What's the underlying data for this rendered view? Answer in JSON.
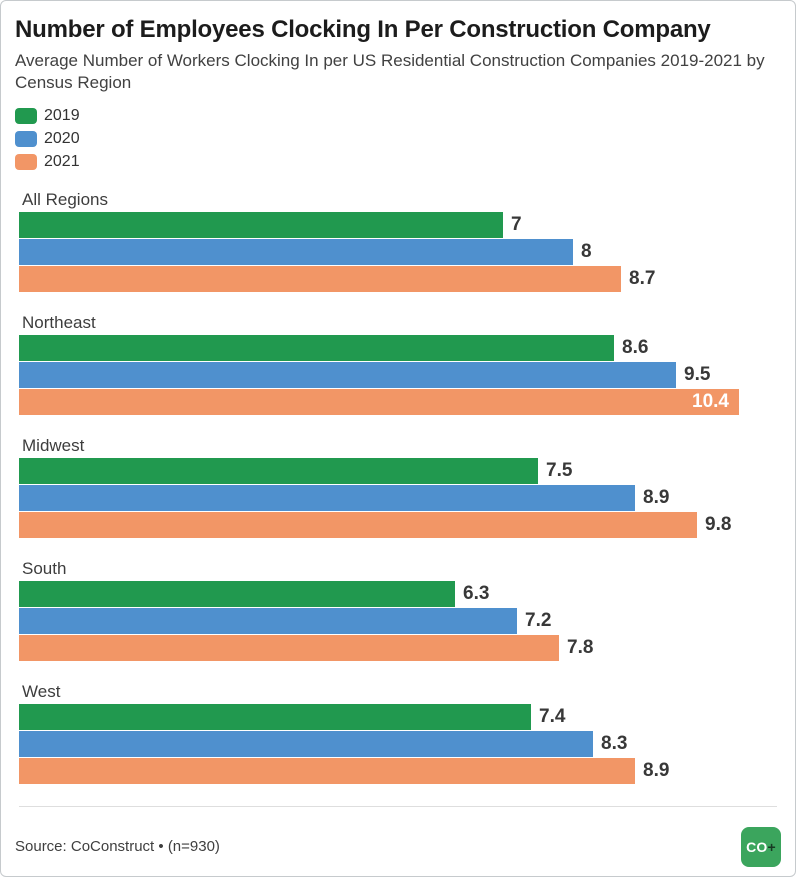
{
  "header": {
    "title": "Number of Employees Clocking In Per Construction Company",
    "subtitle": "Average Number of Workers Clocking In per US Residential Construction Companies 2019-2021 by Census Region"
  },
  "chart_data": {
    "type": "bar",
    "orientation": "horizontal",
    "title": "Number of Employees Clocking In Per Construction Company",
    "subtitle": "Average Number of Workers Clocking In per US Residential Construction Companies 2019-2021 by Census Region",
    "categories": [
      "All Regions",
      "Northeast",
      "Midwest",
      "South",
      "West"
    ],
    "series": [
      {
        "name": "2019",
        "color": "#21994f",
        "values": [
          7,
          8.6,
          7.5,
          6.3,
          7.4
        ]
      },
      {
        "name": "2020",
        "color": "#4f90ce",
        "values": [
          8,
          9.5,
          8.9,
          7.2,
          8.3
        ]
      },
      {
        "name": "2021",
        "color": "#f29666",
        "values": [
          8.7,
          10.4,
          9.8,
          7.8,
          8.9
        ]
      }
    ],
    "value_labels": {
      "All Regions": [
        "7",
        "8",
        "8.7"
      ],
      "Northeast": [
        "8.6",
        "9.5",
        "10.4"
      ],
      "Midwest": [
        "7.5",
        "8.9",
        "9.8"
      ],
      "South": [
        "6.3",
        "7.2",
        "7.8"
      ],
      "West": [
        "7.4",
        "8.3",
        "8.9"
      ]
    },
    "xlim": [
      0,
      10.75
    ],
    "grid": false,
    "legend_position": "top-left",
    "value_label_color_outside": "#383838",
    "value_label_color_inside": "#ffffff"
  },
  "footer": {
    "source": "Source: CoConstruct • (n=930)",
    "logo_text": "CO",
    "logo_plus": "+",
    "logo_color": "#3ba55d"
  }
}
